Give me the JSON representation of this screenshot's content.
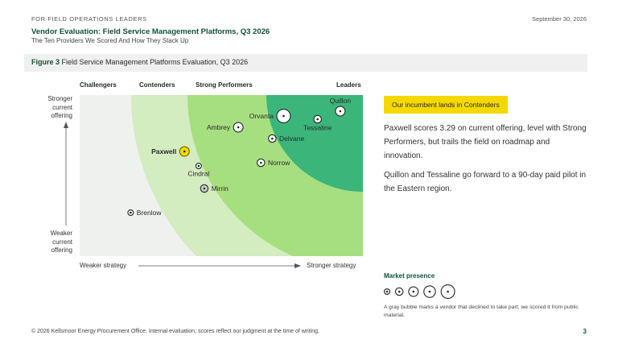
{
  "header": {
    "kicker": "FOR FIELD OPERATIONS LEADERS",
    "date": "September 30, 2026",
    "title": "Vendor Evaluation: Field Service Management Platforms, Q3 2026",
    "subtitle": "The Ten Providers We Scored And How They Stack Up"
  },
  "figure": {
    "label": "Figure 3",
    "caption": "Field Service Management Platforms Evaluation, Q3 2026"
  },
  "chart_data": {
    "type": "scatter",
    "zones": [
      "Challengers",
      "Contenders",
      "Strong Performers",
      "Leaders"
    ],
    "y_label_top": "Stronger current offering",
    "y_label_bottom": "Weaker current offering",
    "x_label_left": "Weaker strategy",
    "x_label_right": "Stronger strategy",
    "xlim": [
      0,
      100
    ],
    "ylim": [
      0,
      100
    ],
    "points": [
      {
        "name": "Quillon",
        "x": 92,
        "y": 90,
        "presence": 3,
        "label_pos": "above",
        "highlight": false,
        "participated": true
      },
      {
        "name": "Orvanta",
        "x": 72,
        "y": 87,
        "presence": 5,
        "label_pos": "left",
        "highlight": false,
        "participated": true
      },
      {
        "name": "Tessaline",
        "x": 84,
        "y": 85,
        "presence": 2,
        "label_pos": "below",
        "highlight": false,
        "participated": true
      },
      {
        "name": "Ambrey",
        "x": 56,
        "y": 80,
        "presence": 3,
        "label_pos": "left",
        "highlight": false,
        "participated": true
      },
      {
        "name": "Delvane",
        "x": 68,
        "y": 73,
        "presence": 2,
        "label_pos": "right",
        "highlight": false,
        "participated": true
      },
      {
        "name": "Paxwell",
        "x": 37,
        "y": 65,
        "presence": 3,
        "label_pos": "left",
        "highlight": true,
        "participated": true
      },
      {
        "name": "Norrow",
        "x": 64,
        "y": 58,
        "presence": 2,
        "label_pos": "right",
        "highlight": false,
        "participated": true
      },
      {
        "name": "Cindral",
        "x": 42,
        "y": 56,
        "presence": 1,
        "label_pos": "below",
        "highlight": false,
        "participated": true
      },
      {
        "name": "Mirrin",
        "x": 44,
        "y": 42,
        "presence": 2,
        "label_pos": "right",
        "highlight": false,
        "participated": false
      },
      {
        "name": "Brenlow",
        "x": 18,
        "y": 27,
        "presence": 1,
        "label_pos": "right",
        "highlight": false,
        "participated": true
      }
    ]
  },
  "sidebar": {
    "callout": "Our incumbent lands in Contenders",
    "p1": "Paxwell scores 3.29 on current offering, level with Strong Performers, but trails the field on roadmap and innovation.",
    "p2": "Quillon and Tessaline go forward to a 90-day paid pilot in the Eastern region.",
    "presence_title": "Market presence",
    "presence_note": "A gray bubble marks a vendor that declined to take part; we scored it from public material."
  },
  "colors": {
    "zone1": "#eef1ee",
    "zone2": "#d3ecc0",
    "zone3": "#a6df7f",
    "zone4": "#3bb57a",
    "brand_green": "#0f5136",
    "highlight": "#f5d800",
    "declined": "#c9cec9"
  },
  "footer": {
    "text": "© 2026 Kellsmoor Energy Procurement Office. Internal evaluation; scores reflect our judgment at the time of writing.",
    "page": "3"
  }
}
